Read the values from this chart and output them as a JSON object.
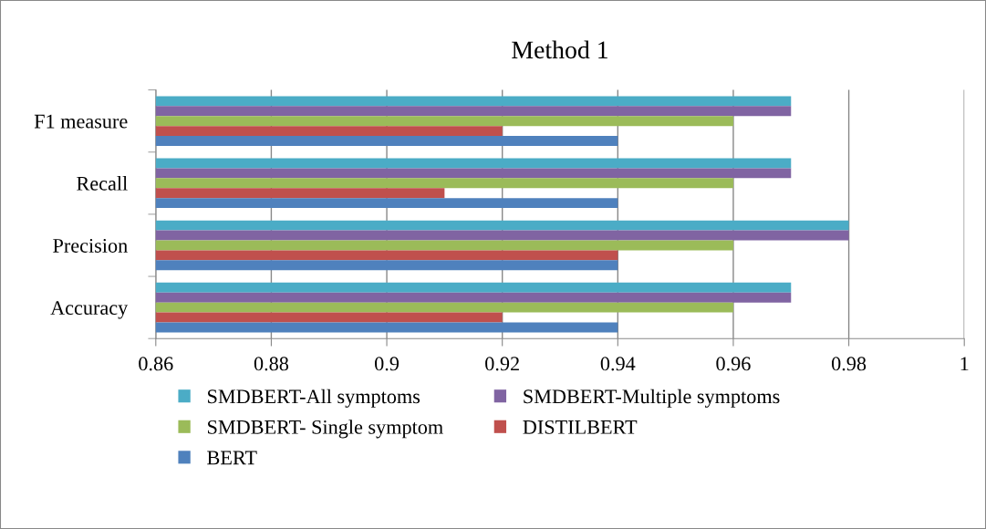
{
  "chart_data": {
    "type": "bar",
    "orientation": "horizontal",
    "title": "Method 1",
    "categories": [
      "F1 measure",
      "Recall",
      "Precision",
      "Accuracy"
    ],
    "series": [
      {
        "name": "SMDBERT-All symptoms",
        "color": "#4bacc6",
        "values": [
          0.97,
          0.97,
          0.98,
          0.97
        ]
      },
      {
        "name": "SMDBERT-Multiple symptoms",
        "color": "#8064a2",
        "values": [
          0.97,
          0.97,
          0.98,
          0.97
        ]
      },
      {
        "name": "SMDBERT- Single symptom",
        "color": "#9bbb59",
        "values": [
          0.96,
          0.96,
          0.96,
          0.96
        ]
      },
      {
        "name": "DISTILBERT",
        "color": "#c0504d",
        "values": [
          0.92,
          0.91,
          0.94,
          0.92
        ]
      },
      {
        "name": "BERT",
        "color": "#4f81bd",
        "values": [
          0.94,
          0.94,
          0.94,
          0.94
        ]
      }
    ],
    "xlim": [
      0.86,
      1
    ],
    "xticks": [
      0.86,
      0.88,
      {
        "value": 0.9,
        "label": "0.9"
      },
      0.92,
      0.94,
      0.96,
      0.98,
      {
        "value": 1,
        "label": "1"
      }
    ],
    "grid": "x",
    "legend": "bottom"
  }
}
